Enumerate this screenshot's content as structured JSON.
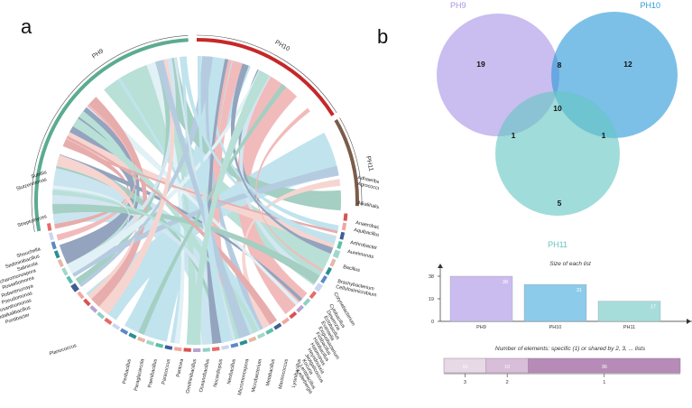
{
  "panels": {
    "a": "a",
    "b": "b"
  },
  "chord": {
    "groups": [
      {
        "name": "PH9",
        "color": "#5aab92"
      },
      {
        "name": "PH10",
        "color": "#c62828"
      },
      {
        "name": "PH11",
        "color": "#7a5c4a"
      }
    ],
    "genera_left": [
      "Subtilis",
      "Stutzerimonas",
      "Streptomyces",
      "Shouchella",
      "Sediminibacillus",
      "Salinicola",
      "Saccharomonospora",
      "Rossellomorea",
      "Robertmurraya",
      "Pseudomonas",
      "Pseudoxanthomonas",
      "Pseudalkalibacillus",
      "Pontibacter",
      "Planococcus"
    ],
    "genera_bottom": [
      "Peribacillus",
      "Paraglaciecola",
      "Paenibacillus",
      "Paracoccus",
      "Pantoea",
      "Ornithinibacillus",
      "Oceanobacillus",
      "Nocardiopsis",
      "Neobacillus",
      "Micromonospora",
      "Microbacterium",
      "Metabacillus",
      "Marinococcus",
      "Lysinibacillus"
    ],
    "genera_right": [
      "Adhaeribacter",
      "Agrococcus",
      "Alkalihalobacillus",
      "Anaerobacillus",
      "Aquibacillus",
      "Arthrobacter",
      "Aureimonas",
      "Bacillus",
      "Brachybacterium",
      "Cellulosimicrobium",
      "Corynebacterium",
      "Cytobacillus",
      "Desemzia",
      "Ectobacillus",
      "Evansella",
      "Exiguobacterium",
      "Fictibacillus",
      "Halobacillus",
      "Halomonas",
      "Heyndrickxia",
      "Jeotgalicoccus",
      "Kocuria",
      "Lentibacillus",
      "Lederbergia"
    ]
  },
  "venn": {
    "sets": [
      {
        "name": "PH9",
        "color": "#a995e6"
      },
      {
        "name": "PH10",
        "color": "#2b9ad9"
      },
      {
        "name": "PH11",
        "color": "#66c6c4"
      }
    ],
    "regions": {
      "only_ph9": "19",
      "only_ph10": "12",
      "only_ph11": "5",
      "ph9_ph10": "8",
      "ph9_ph11": "1",
      "ph10_ph11": "1",
      "all": "10"
    }
  },
  "chart_data": [
    {
      "type": "bar",
      "title": "Size of each list",
      "categories": [
        "PH9",
        "PH10",
        "PH11"
      ],
      "values": [
        38,
        31,
        17
      ],
      "colors": [
        "#cbbcf0",
        "#8ccbea",
        "#a6dddb"
      ],
      "ylim": [
        0,
        38
      ],
      "yticks": [
        "38",
        "19",
        "0"
      ]
    },
    {
      "type": "bar",
      "orientation": "horizontal-stacked",
      "title": "Number of elements: specific (1) or shared by 2, 3, ... lists",
      "categories": [
        "3",
        "2",
        "1"
      ],
      "values": [
        10,
        10,
        36
      ],
      "colors": [
        "#e7d9e5",
        "#d8bed8",
        "#b68bb7"
      ]
    }
  ]
}
